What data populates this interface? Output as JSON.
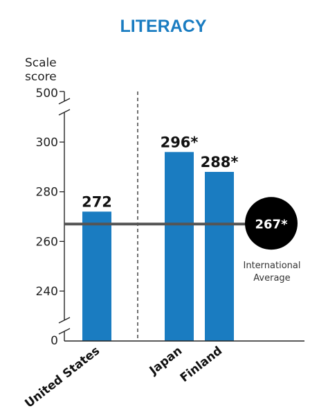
{
  "chart_data": {
    "type": "bar",
    "title": "LITERACY",
    "ylabel_lines": [
      "Scale",
      "score"
    ],
    "categories": [
      "United States",
      "Japan",
      "Finland"
    ],
    "values": [
      272,
      296,
      288
    ],
    "value_labels": [
      "272",
      "296*",
      "288*"
    ],
    "ylim": [
      225,
      305
    ],
    "yticks": [
      240,
      260,
      280,
      300
    ],
    "ytick_labels": [
      "240",
      "260",
      "280",
      "300"
    ],
    "axis_break_labels": {
      "top": "500",
      "bottom": "0"
    },
    "reference_line": {
      "value": 267,
      "label": "267*",
      "caption_lines": [
        "International",
        "Average"
      ]
    },
    "grid": false,
    "colors": {
      "bar": "#1a7cc1",
      "title": "#1a7cc1",
      "average_line": "#555555",
      "average_badge": "#000000"
    }
  }
}
